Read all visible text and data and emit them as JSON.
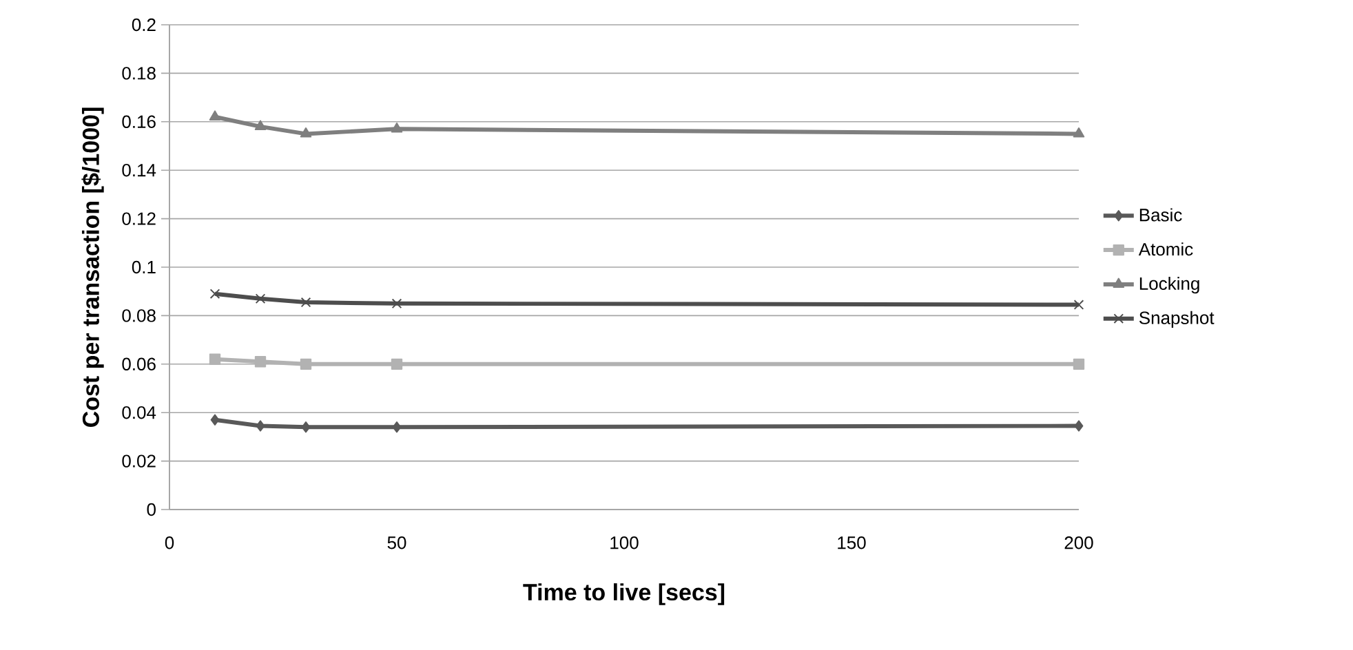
{
  "chart_data": {
    "type": "line",
    "xlabel": "Time to live  [secs]",
    "ylabel": "Cost per transaction [$/1000]",
    "x": [
      10,
      20,
      30,
      50,
      200
    ],
    "series": [
      {
        "name": "Basic",
        "color": "#595959",
        "marker": "diamond",
        "values": [
          0.037,
          0.0345,
          0.034,
          0.034,
          0.0345
        ]
      },
      {
        "name": "Atomic",
        "color": "#b2b2b2",
        "marker": "square",
        "values": [
          0.062,
          0.061,
          0.06,
          0.06,
          0.06
        ]
      },
      {
        "name": "Locking",
        "color": "#7f7f7f",
        "marker": "triangle",
        "values": [
          0.162,
          0.158,
          0.155,
          0.157,
          0.155
        ]
      },
      {
        "name": "Snapshot",
        "color": "#4d4d4d",
        "marker": "cross",
        "values": [
          0.089,
          0.087,
          0.0855,
          0.085,
          0.0845
        ]
      }
    ],
    "xlim": [
      0,
      200
    ],
    "xticks": [
      0,
      50,
      100,
      150,
      200
    ],
    "ylim": [
      0,
      0.2
    ],
    "yticks": [
      0,
      0.02,
      0.04,
      0.06,
      0.08,
      0.1,
      0.12,
      0.14,
      0.16,
      0.18,
      0.2
    ],
    "grid": "y",
    "legend": "right",
    "line_style": "solid"
  }
}
